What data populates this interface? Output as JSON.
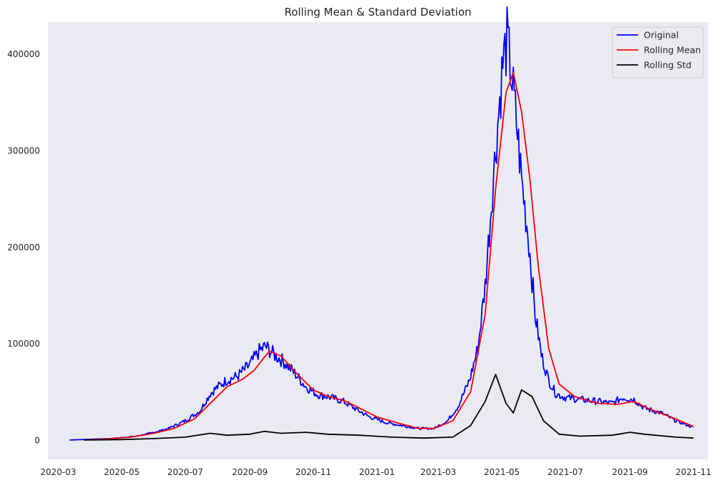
{
  "chart_data": {
    "type": "line",
    "title": "Rolling Mean & Standard Deviation",
    "xlabel": "",
    "ylabel": "",
    "x_tick_labels": [
      "2020-03",
      "2020-05",
      "2020-07",
      "2020-09",
      "2020-11",
      "2021-01",
      "2021-03",
      "2021-05",
      "2021-07",
      "2021-09",
      "2021-11"
    ],
    "y_ticks": [
      0,
      100000,
      200000,
      300000,
      400000
    ],
    "y_tick_labels": [
      "0",
      "100000",
      "200000",
      "300000",
      "400000"
    ],
    "xlim": [
      "2020-02-20",
      "2021-11-15"
    ],
    "ylim": [
      -20000,
      433000
    ],
    "grid": false,
    "legend_position": "top-right",
    "background": "#eaeaf2",
    "series": [
      {
        "name": "Original",
        "color": "#0000ff",
        "points": [
          [
            "2020-03-12",
            0
          ],
          [
            "2020-04-01",
            800
          ],
          [
            "2020-04-20",
            1500
          ],
          [
            "2020-05-01",
            2500
          ],
          [
            "2020-05-15",
            4000
          ],
          [
            "2020-06-01",
            8000
          ],
          [
            "2020-06-15",
            12000
          ],
          [
            "2020-07-01",
            20000
          ],
          [
            "2020-07-15",
            30000
          ],
          [
            "2020-07-25",
            48000
          ],
          [
            "2020-08-01",
            55000
          ],
          [
            "2020-08-10",
            62000
          ],
          [
            "2020-08-20",
            66000
          ],
          [
            "2020-09-01",
            78000
          ],
          [
            "2020-09-10",
            92000
          ],
          [
            "2020-09-16",
            97000
          ],
          [
            "2020-09-25",
            88000
          ],
          [
            "2020-10-05",
            80000
          ],
          [
            "2020-10-15",
            68000
          ],
          [
            "2020-10-25",
            55000
          ],
          [
            "2020-11-05",
            47000
          ],
          [
            "2020-11-15",
            45000
          ],
          [
            "2020-11-30",
            40000
          ],
          [
            "2020-12-15",
            30000
          ],
          [
            "2020-12-25",
            24000
          ],
          [
            "2021-01-10",
            18000
          ],
          [
            "2021-01-25",
            15000
          ],
          [
            "2021-02-10",
            12000
          ],
          [
            "2021-02-25",
            12000
          ],
          [
            "2021-03-10",
            20000
          ],
          [
            "2021-03-20",
            35000
          ],
          [
            "2021-03-31",
            62000
          ],
          [
            "2021-04-08",
            95000
          ],
          [
            "2021-04-15",
            160000
          ],
          [
            "2021-04-22",
            260000
          ],
          [
            "2021-04-28",
            340000
          ],
          [
            "2021-05-02",
            390000
          ],
          [
            "2021-05-06",
            414000
          ],
          [
            "2021-05-10",
            380000
          ],
          [
            "2021-05-15",
            330000
          ],
          [
            "2021-05-20",
            270000
          ],
          [
            "2021-05-27",
            205000
          ],
          [
            "2021-06-02",
            130000
          ],
          [
            "2021-06-08",
            88000
          ],
          [
            "2021-06-15",
            62000
          ],
          [
            "2021-06-22",
            48000
          ],
          [
            "2021-07-01",
            44000
          ],
          [
            "2021-07-15",
            42000
          ],
          [
            "2021-08-01",
            40000
          ],
          [
            "2021-08-15",
            38000
          ],
          [
            "2021-08-25",
            44000
          ],
          [
            "2021-09-05",
            42000
          ],
          [
            "2021-09-15",
            33000
          ],
          [
            "2021-10-01",
            28000
          ],
          [
            "2021-10-15",
            20000
          ],
          [
            "2021-11-01",
            13000
          ]
        ]
      },
      {
        "name": "Rolling Mean",
        "color": "#ff0000",
        "points": [
          [
            "2020-03-26",
            0
          ],
          [
            "2020-04-15",
            1000
          ],
          [
            "2020-05-10",
            3000
          ],
          [
            "2020-06-01",
            7000
          ],
          [
            "2020-06-20",
            12000
          ],
          [
            "2020-07-10",
            22000
          ],
          [
            "2020-07-25",
            38000
          ],
          [
            "2020-08-10",
            55000
          ],
          [
            "2020-08-25",
            63000
          ],
          [
            "2020-09-05",
            72000
          ],
          [
            "2020-09-15",
            86000
          ],
          [
            "2020-09-20",
            92000
          ],
          [
            "2020-10-01",
            87000
          ],
          [
            "2020-10-15",
            70000
          ],
          [
            "2020-11-01",
            52000
          ],
          [
            "2020-11-15",
            45000
          ],
          [
            "2020-11-30",
            41000
          ],
          [
            "2020-12-10",
            36000
          ],
          [
            "2021-01-01",
            24000
          ],
          [
            "2021-01-20",
            18000
          ],
          [
            "2021-02-10",
            12000
          ],
          [
            "2021-02-25",
            12000
          ],
          [
            "2021-03-15",
            20000
          ],
          [
            "2021-04-01",
            50000
          ],
          [
            "2021-04-15",
            130000
          ],
          [
            "2021-04-25",
            260000
          ],
          [
            "2021-05-05",
            360000
          ],
          [
            "2021-05-12",
            381000
          ],
          [
            "2021-05-20",
            340000
          ],
          [
            "2021-05-28",
            270000
          ],
          [
            "2021-06-05",
            180000
          ],
          [
            "2021-06-15",
            95000
          ],
          [
            "2021-06-25",
            58000
          ],
          [
            "2021-07-10",
            45000
          ],
          [
            "2021-08-01",
            38000
          ],
          [
            "2021-08-20",
            37000
          ],
          [
            "2021-09-05",
            40000
          ],
          [
            "2021-09-20",
            32000
          ],
          [
            "2021-10-10",
            24000
          ],
          [
            "2021-11-01",
            14000
          ]
        ]
      },
      {
        "name": "Rolling Std",
        "color": "#000000",
        "points": [
          [
            "2020-03-26",
            0
          ],
          [
            "2020-05-01",
            500
          ],
          [
            "2020-06-01",
            1500
          ],
          [
            "2020-07-01",
            3000
          ],
          [
            "2020-07-25",
            7000
          ],
          [
            "2020-08-10",
            5000
          ],
          [
            "2020-09-01",
            6000
          ],
          [
            "2020-09-15",
            9000
          ],
          [
            "2020-10-01",
            7000
          ],
          [
            "2020-10-25",
            8000
          ],
          [
            "2020-11-15",
            6000
          ],
          [
            "2020-12-15",
            5000
          ],
          [
            "2021-01-15",
            3000
          ],
          [
            "2021-02-15",
            2000
          ],
          [
            "2021-03-15",
            3000
          ],
          [
            "2021-04-01",
            15000
          ],
          [
            "2021-04-15",
            40000
          ],
          [
            "2021-04-25",
            68000
          ],
          [
            "2021-05-05",
            38000
          ],
          [
            "2021-05-12",
            28000
          ],
          [
            "2021-05-20",
            52000
          ],
          [
            "2021-05-30",
            45000
          ],
          [
            "2021-06-10",
            20000
          ],
          [
            "2021-06-25",
            6000
          ],
          [
            "2021-07-15",
            4000
          ],
          [
            "2021-08-15",
            5000
          ],
          [
            "2021-09-01",
            8000
          ],
          [
            "2021-09-15",
            6000
          ],
          [
            "2021-10-15",
            3000
          ],
          [
            "2021-11-01",
            2000
          ]
        ]
      }
    ]
  }
}
